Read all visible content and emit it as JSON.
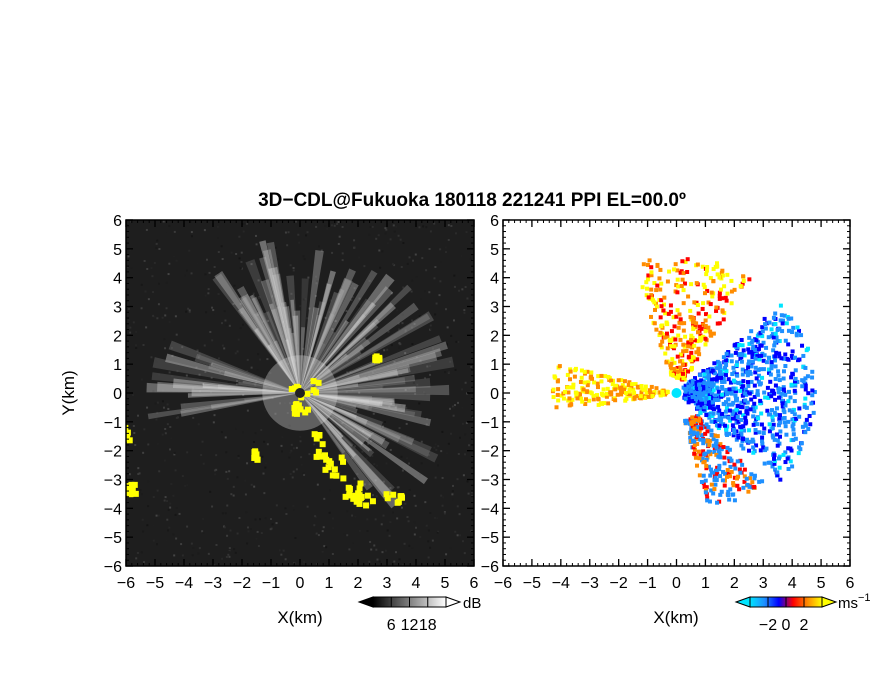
{
  "chart_data": {
    "title": "3D−CDL@Fukuoka 180118 221241 PPI EL=00.0º",
    "panels": [
      {
        "type": "heatmap",
        "xlabel": "X(km)",
        "ylabel": "Y(km)",
        "xlim": [
          -6,
          6
        ],
        "ylim": [
          -6,
          6
        ],
        "x_ticks": [
          -6,
          -5,
          -4,
          -3,
          -2,
          -1,
          0,
          1,
          2,
          3,
          4,
          5,
          6
        ],
        "y_ticks": [
          -6,
          -5,
          -4,
          -3,
          -2,
          -1,
          0,
          1,
          2,
          3,
          4,
          5,
          6
        ],
        "x_tick_labels": [
          "−6",
          "−5",
          "−4",
          "−3",
          "−2",
          "−1",
          "0",
          "1",
          "2",
          "3",
          "4",
          "5",
          "6"
        ],
        "y_tick_labels": [
          "−6",
          "−5",
          "−4",
          "−3",
          "−2",
          "−1",
          "0",
          "1",
          "2",
          "3",
          "4",
          "5",
          "6"
        ],
        "background": "#1e1e1e",
        "highlight_color": "#ffff00",
        "colorbar": {
          "unit": "dB",
          "ticks": [
            6,
            12,
            18
          ],
          "tick_labels": [
            "6",
            "12",
            "18"
          ],
          "range": [
            0,
            24
          ],
          "colors": [
            "#000000",
            "#ffffff"
          ]
        }
      },
      {
        "type": "heatmap",
        "xlabel": "X(km)",
        "xlim": [
          -6,
          6
        ],
        "ylim": [
          -6,
          6
        ],
        "x_ticks": [
          -6,
          -5,
          -4,
          -3,
          -2,
          -1,
          0,
          1,
          2,
          3,
          4,
          5,
          6
        ],
        "y_ticks": [
          -6,
          -5,
          -4,
          -3,
          -2,
          -1,
          0,
          1,
          2,
          3,
          4,
          5,
          6
        ],
        "x_tick_labels": [
          "−6",
          "−5",
          "−4",
          "−3",
          "−2",
          "−1",
          "0",
          "1",
          "2",
          "3",
          "4",
          "5",
          "6"
        ],
        "y_tick_labels": [
          "−6",
          "−5",
          "−4",
          "−3",
          "−2",
          "−1",
          "0",
          "1",
          "2",
          "3",
          "4",
          "5",
          "6"
        ],
        "background": "#ffffff",
        "colorbar": {
          "unit": "ms",
          "unit_exp": "−1",
          "ticks": [
            -2,
            0,
            2
          ],
          "tick_labels": [
            "−2",
            "0",
            "2"
          ],
          "range": [
            -4,
            4
          ],
          "colors": [
            "#00e5ff",
            "#1e90ff",
            "#0000ff",
            "#ff0000",
            "#ff8c00",
            "#ffff00"
          ]
        }
      }
    ]
  }
}
